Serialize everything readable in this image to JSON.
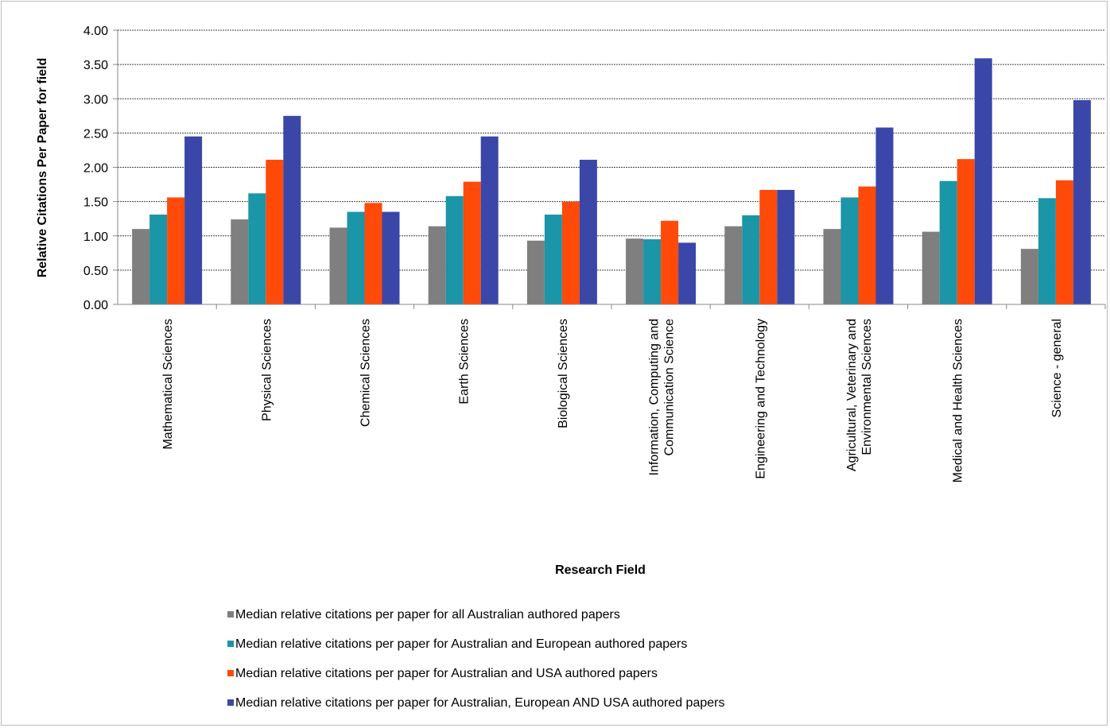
{
  "chart_data": {
    "type": "bar",
    "title": "",
    "xlabel": "Research Field",
    "ylabel": "Relative Citations Per Paper for field",
    "ylim": [
      0,
      4
    ],
    "yticks": [
      "0.00",
      "0.50",
      "1.00",
      "1.50",
      "2.00",
      "2.50",
      "3.00",
      "3.50",
      "4.00"
    ],
    "grid": true,
    "legend_position": "bottom",
    "categories": [
      [
        "Mathematical Sciences"
      ],
      [
        "Physical Sciences"
      ],
      [
        "Chemical Sciences"
      ],
      [
        "Earth Sciences"
      ],
      [
        "Biological Sciences"
      ],
      [
        "Information, Computing and",
        "Communication Science"
      ],
      [
        "Engineering and Technology"
      ],
      [
        "Agricultural, Veterinary and",
        "Environmental Sciences"
      ],
      [
        "Medical and Health Sciences"
      ],
      [
        "Science - general"
      ]
    ],
    "series": [
      {
        "name": "Median relative citations per paper for all Australian authored papers",
        "color": "#7f7f7f",
        "values": [
          1.1,
          1.24,
          1.12,
          1.14,
          0.93,
          0.96,
          1.14,
          1.1,
          1.06,
          0.81
        ]
      },
      {
        "name": "Median relative  citations per paper for Australian and European authored papers",
        "color": "#1b95a8",
        "values": [
          1.31,
          1.62,
          1.35,
          1.58,
          1.31,
          0.95,
          1.3,
          1.56,
          1.8,
          1.55
        ]
      },
      {
        "name": "Median  relative citations per paper for Australian and USA authored papers",
        "color": "#ff4a0a",
        "values": [
          1.56,
          2.11,
          1.48,
          1.79,
          1.5,
          1.22,
          1.67,
          1.72,
          2.12,
          1.81
        ]
      },
      {
        "name": "Median  relative citations per paper for Australian, European AND USA authored papers",
        "color": "#3a47a8",
        "values": [
          2.45,
          2.75,
          1.35,
          2.45,
          2.11,
          0.9,
          1.67,
          2.58,
          3.59,
          2.98
        ]
      }
    ]
  }
}
